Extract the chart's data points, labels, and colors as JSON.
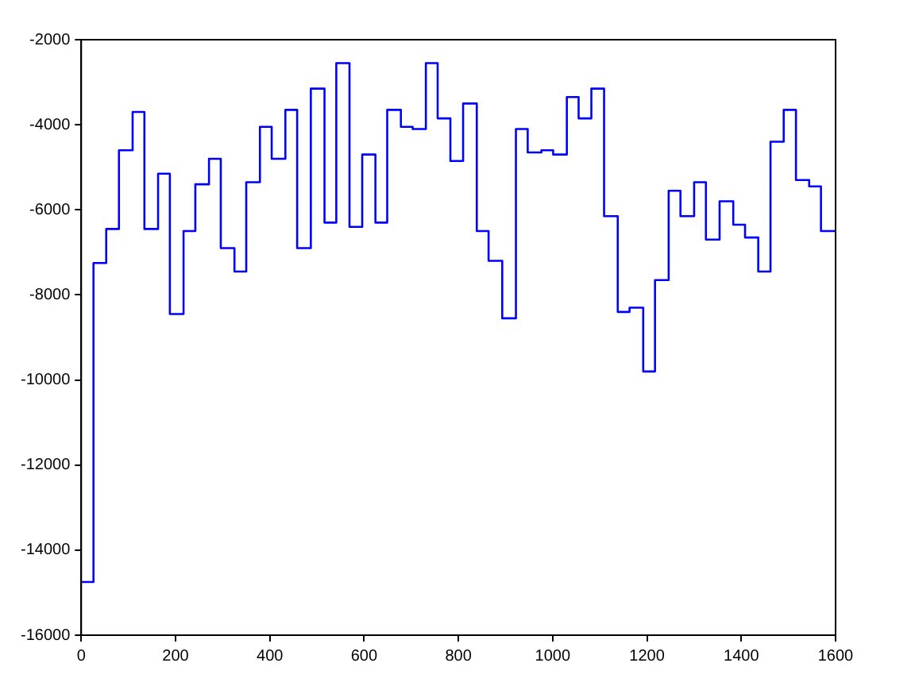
{
  "chart_data": {
    "type": "step",
    "x": [
      0,
      26,
      53,
      80,
      109,
      134,
      163,
      188,
      217,
      242,
      271,
      296,
      325,
      350,
      379,
      404,
      433,
      458,
      487,
      516,
      541,
      569,
      596,
      624,
      649,
      678,
      703,
      731,
      756,
      783,
      810,
      839,
      864,
      893,
      922,
      947,
      976,
      1001,
      1030,
      1055,
      1082,
      1109,
      1138,
      1163,
      1192,
      1217,
      1246,
      1271,
      1300,
      1325,
      1354,
      1383,
      1408,
      1436,
      1462,
      1490,
      1516,
      1544,
      1569,
      1600
    ],
    "series": [
      {
        "color": "#0000ff",
        "values": [
          -14750,
          -7250,
          -6450,
          -4600,
          -3700,
          -6450,
          -5150,
          -8450,
          -6500,
          -5400,
          -4800,
          -6900,
          -7450,
          -5350,
          -4050,
          -4800,
          -3650,
          -6900,
          -3150,
          -6300,
          -2550,
          -6400,
          -4700,
          -6300,
          -3650,
          -4050,
          -4100,
          -2550,
          -3850,
          -4850,
          -3500,
          -6500,
          -7200,
          -8550,
          -4100,
          -4650,
          -4600,
          -4700,
          -3350,
          -3850,
          -3150,
          -6150,
          -8400,
          -8300,
          -9800,
          -7650,
          -5550,
          -6150,
          -5350,
          -6700,
          -5800,
          -6350,
          -6650,
          -7450,
          -4400,
          -3650,
          -5300,
          -5450,
          -6500,
          -6500
        ]
      }
    ],
    "xlim": [
      0,
      1600
    ],
    "xticks": [
      0,
      200,
      400,
      600,
      800,
      1000,
      1200,
      1400,
      1600
    ],
    "ylim": [
      -16000,
      -2000
    ],
    "yticks": [
      -16000,
      -14000,
      -12000,
      -10000,
      -8000,
      -6000,
      -4000,
      -2000
    ]
  }
}
